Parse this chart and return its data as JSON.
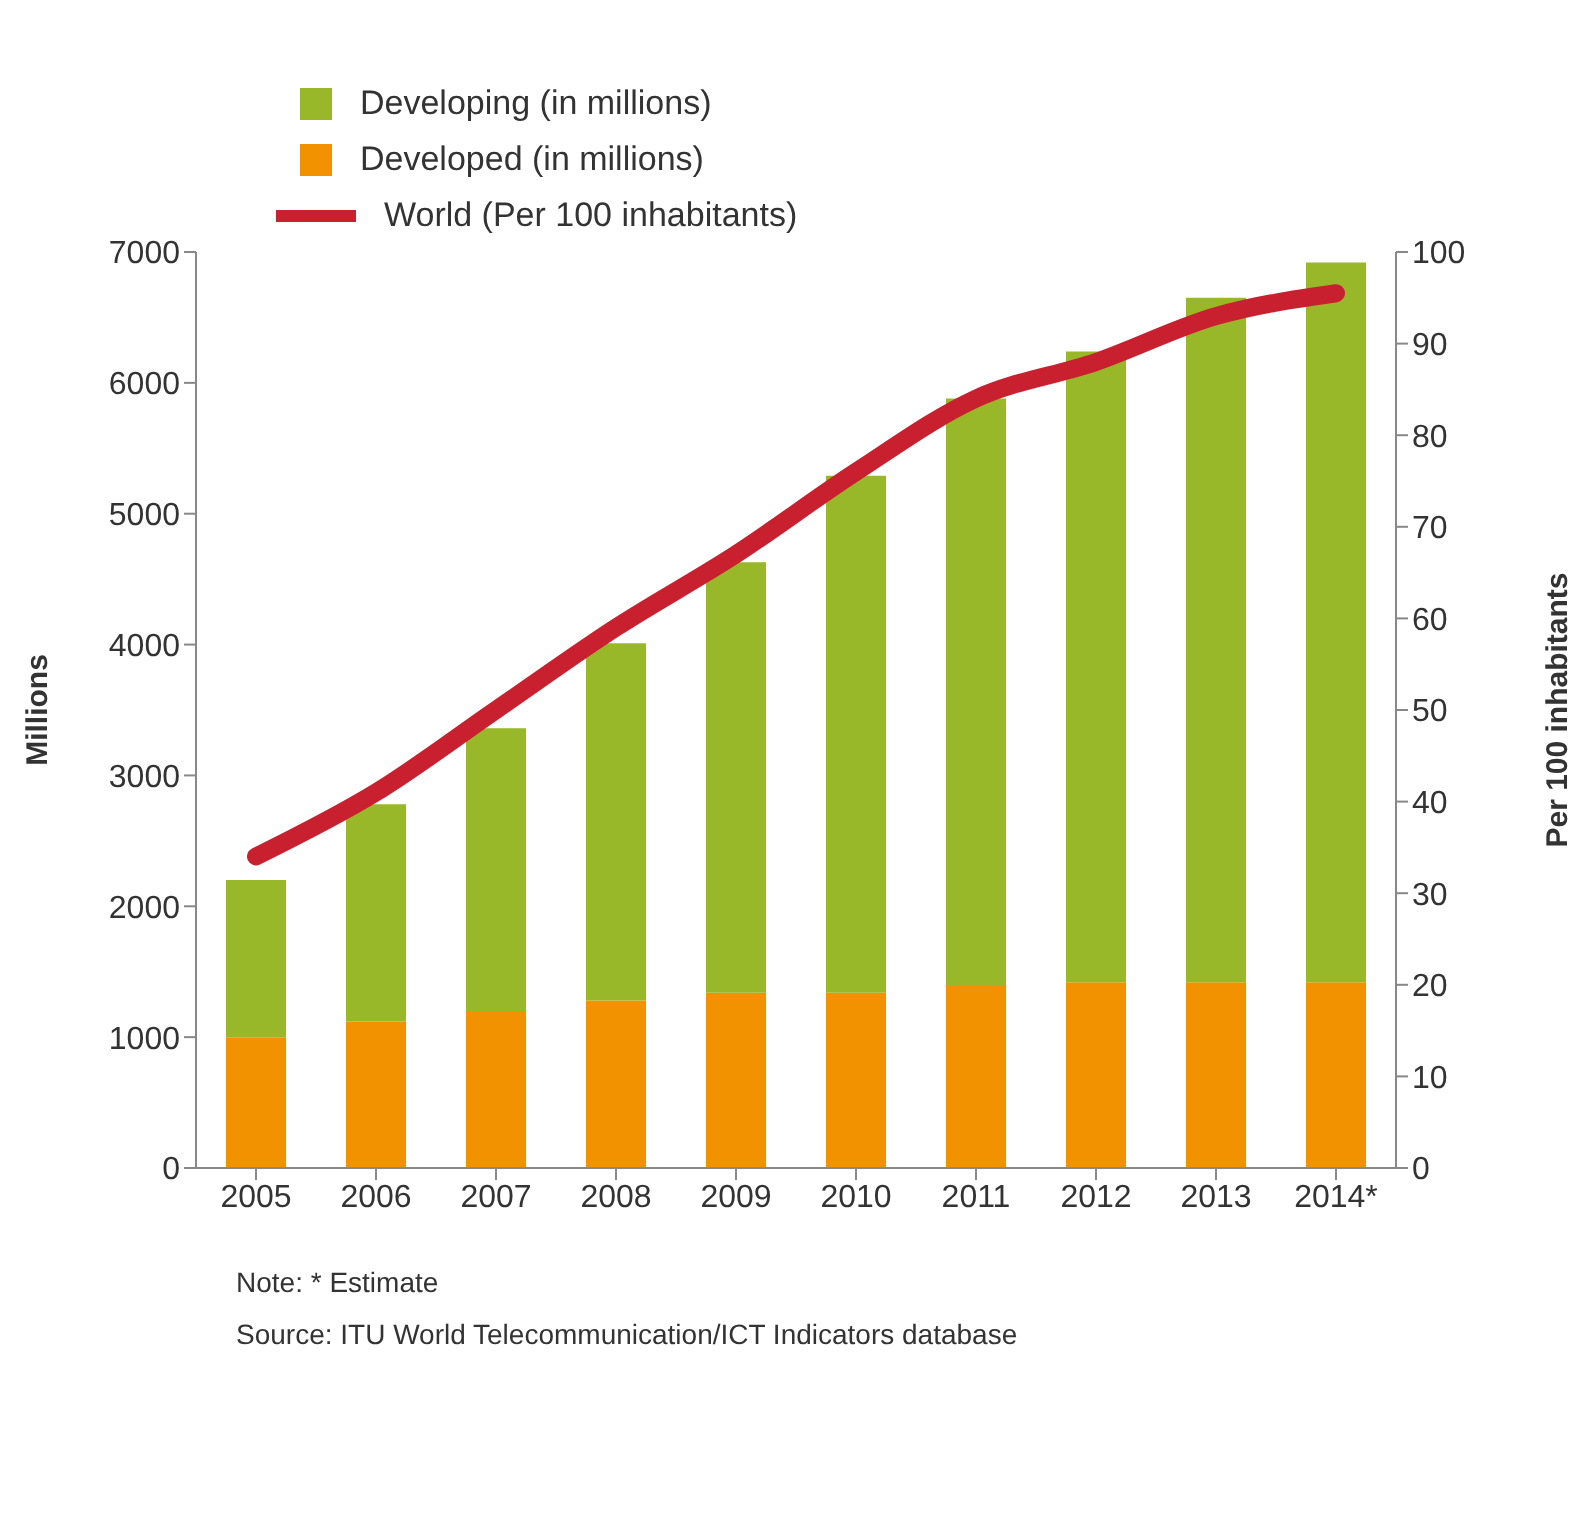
{
  "chart_data": {
    "type": "bar",
    "stacked": true,
    "categories": [
      "2005",
      "2006",
      "2007",
      "2008",
      "2009",
      "2010",
      "2011",
      "2012",
      "2013",
      "2014*"
    ],
    "series": [
      {
        "name": "Developed (in millions)",
        "color": "#f39200",
        "values": [
          1000,
          1120,
          1200,
          1280,
          1340,
          1340,
          1390,
          1420,
          1420,
          1420
        ]
      },
      {
        "name": "Developing (in millions)",
        "color": "#99b829",
        "values": [
          1200,
          1660,
          2160,
          2730,
          3290,
          3950,
          4490,
          4820,
          5230,
          5500
        ]
      },
      {
        "name": "World (Per 100 inhabitants)",
        "type": "line",
        "axis": "y2",
        "color": "#c8202f",
        "values": [
          34,
          41,
          50,
          59,
          67,
          76,
          84,
          88,
          93,
          95.5
        ]
      }
    ],
    "ylabel": "Millions",
    "y2label": "Per 100 inhabitants",
    "ylim": [
      0,
      7000
    ],
    "yticks": [
      0,
      1000,
      2000,
      3000,
      4000,
      5000,
      6000,
      7000
    ],
    "y2lim": [
      0,
      100
    ],
    "y2ticks": [
      0,
      10,
      20,
      30,
      40,
      50,
      60,
      70,
      80,
      90,
      100
    ],
    "legend": "top left",
    "grid": false,
    "marker": "none",
    "annotations": [
      "Note: * Estimate",
      "Source:  ITU World Telecommunication/ICT Indicators database"
    ]
  }
}
